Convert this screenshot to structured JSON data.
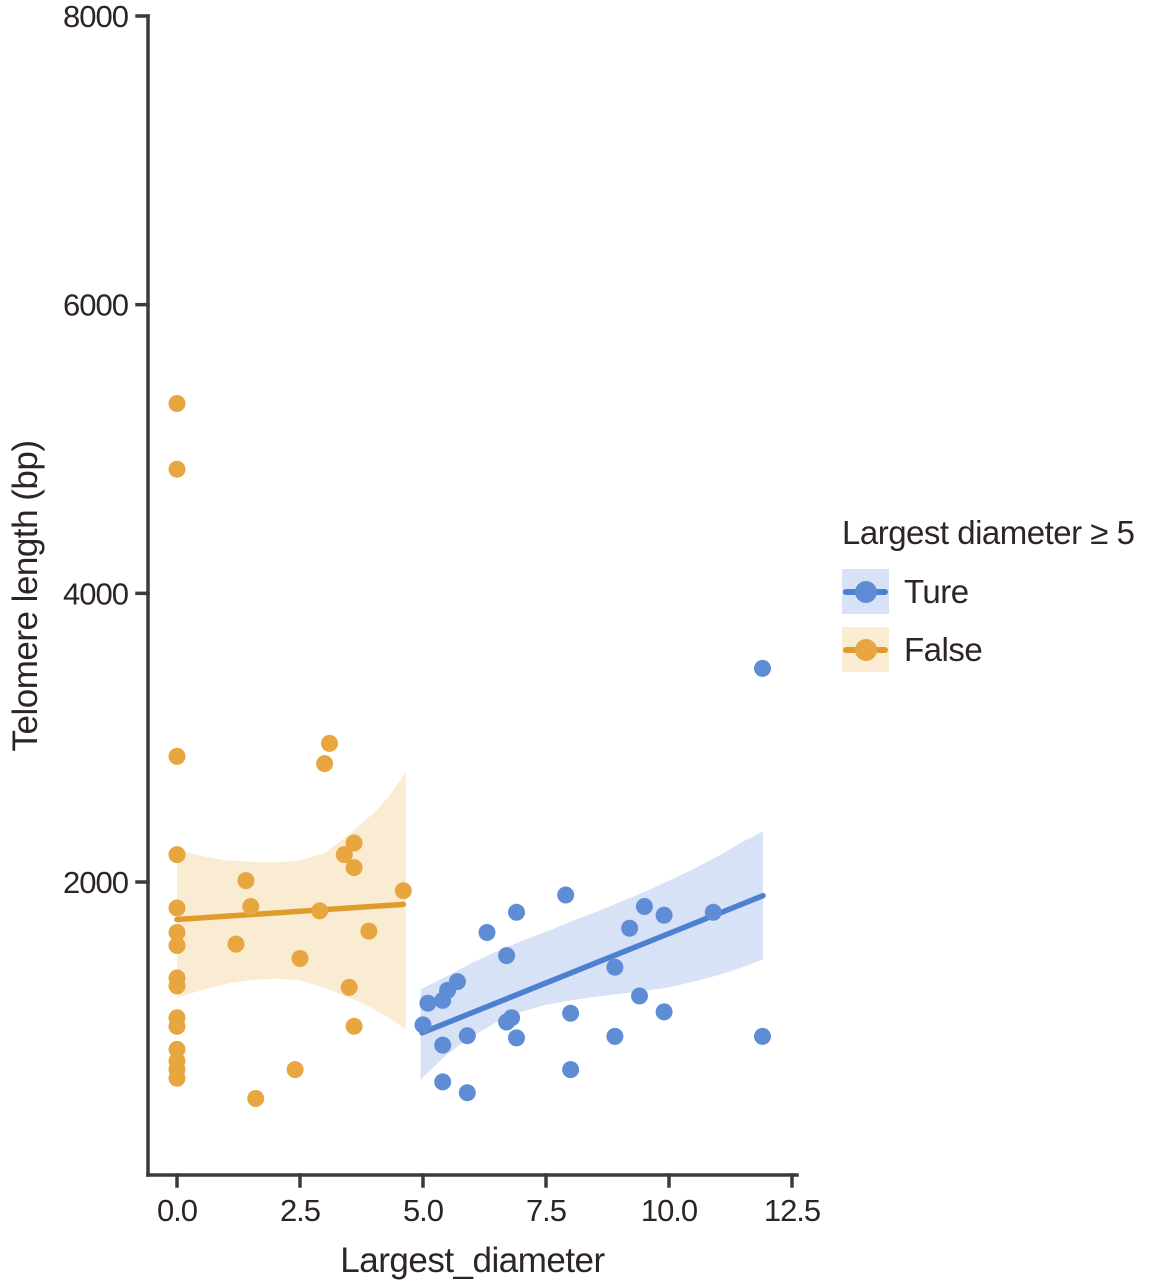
{
  "chart_data": {
    "type": "scatter",
    "title": "",
    "xlabel": "Largest_diameter",
    "ylabel": "Telomere length (bp)",
    "xlim": [
      0,
      12.5
    ],
    "ylim": [
      0,
      8000
    ],
    "grid": false,
    "x_ticks": [
      0.0,
      2.5,
      5.0,
      7.5,
      10.0,
      12.5
    ],
    "x_tick_labels": [
      "0.0",
      "2.5",
      "5.0",
      "7.5",
      "10.0",
      "12.5"
    ],
    "y_ticks": [
      2000,
      4000,
      6000,
      8000
    ],
    "y_tick_labels": [
      "2000",
      "4000",
      "6000",
      "8000"
    ],
    "axis_color": "#3e3a39",
    "text_color": "#2c2523",
    "legend": {
      "title": "Largest diameter ≥ 5",
      "position": "right",
      "items": [
        {
          "label": "Ture",
          "series": "Ture"
        },
        {
          "label": "False",
          "series": "False"
        }
      ]
    },
    "series": [
      {
        "name": "Ture",
        "point_color": "#5e8cd5",
        "line_color": "#4d80d0",
        "band_color": "#d8e2f6",
        "points": [
          [
            5.0,
            1010
          ],
          [
            5.1,
            1160
          ],
          [
            5.4,
            1180
          ],
          [
            5.5,
            1250
          ],
          [
            5.7,
            1310
          ],
          [
            5.4,
            870
          ],
          [
            5.9,
            935
          ],
          [
            5.4,
            615
          ],
          [
            5.9,
            540
          ],
          [
            6.3,
            1650
          ],
          [
            6.7,
            1490
          ],
          [
            6.7,
            1030
          ],
          [
            6.8,
            1060
          ],
          [
            6.9,
            920
          ],
          [
            6.9,
            1790
          ],
          [
            7.9,
            1910
          ],
          [
            8.0,
            1090
          ],
          [
            8.0,
            700
          ],
          [
            8.9,
            1410
          ],
          [
            8.9,
            930
          ],
          [
            9.2,
            1680
          ],
          [
            9.4,
            1210
          ],
          [
            9.5,
            1830
          ],
          [
            9.9,
            1770
          ],
          [
            9.9,
            1100
          ],
          [
            10.9,
            1790
          ],
          [
            11.9,
            3480
          ],
          [
            11.9,
            930
          ]
        ],
        "regression": {
          "x": [
            4.98,
            11.91
          ],
          "y": [
            955,
            1905
          ]
        },
        "band": [
          {
            "x": 4.95,
            "lo": 630,
            "hi": 1255
          },
          {
            "x": 5.5,
            "lo": 810,
            "hi": 1350
          },
          {
            "x": 6.0,
            "lo": 930,
            "hi": 1440
          },
          {
            "x": 6.5,
            "lo": 1030,
            "hi": 1520
          },
          {
            "x": 7.0,
            "lo": 1100,
            "hi": 1590
          },
          {
            "x": 7.5,
            "lo": 1150,
            "hi": 1655
          },
          {
            "x": 8.0,
            "lo": 1180,
            "hi": 1725
          },
          {
            "x": 8.5,
            "lo": 1205,
            "hi": 1790
          },
          {
            "x": 9.0,
            "lo": 1225,
            "hi": 1860
          },
          {
            "x": 9.5,
            "lo": 1245,
            "hi": 1930
          },
          {
            "x": 10.0,
            "lo": 1270,
            "hi": 2010
          },
          {
            "x": 10.5,
            "lo": 1310,
            "hi": 2090
          },
          {
            "x": 11.0,
            "lo": 1355,
            "hi": 2180
          },
          {
            "x": 11.5,
            "lo": 1410,
            "hi": 2280
          },
          {
            "x": 11.91,
            "lo": 1465,
            "hi": 2350
          }
        ]
      },
      {
        "name": "False",
        "point_color": "#e7a63f",
        "line_color": "#df9c2d",
        "band_color": "#f9ecd2",
        "points": [
          [
            0,
            5315
          ],
          [
            0,
            4860
          ],
          [
            0,
            2870
          ],
          [
            0,
            2190
          ],
          [
            0,
            1820
          ],
          [
            0,
            1650
          ],
          [
            0,
            1560
          ],
          [
            0,
            1335
          ],
          [
            0,
            1280
          ],
          [
            0,
            1060
          ],
          [
            0,
            1000
          ],
          [
            0,
            840
          ],
          [
            0,
            760
          ],
          [
            0,
            700
          ],
          [
            0,
            640
          ],
          [
            1.2,
            1570
          ],
          [
            1.4,
            2010
          ],
          [
            1.5,
            1830
          ],
          [
            1.6,
            500
          ],
          [
            2.4,
            700
          ],
          [
            2.5,
            1470
          ],
          [
            2.9,
            1800
          ],
          [
            3.0,
            2820
          ],
          [
            3.1,
            2960
          ],
          [
            3.4,
            2190
          ],
          [
            3.5,
            1270
          ],
          [
            3.6,
            2270
          ],
          [
            3.6,
            2100
          ],
          [
            3.6,
            1000
          ],
          [
            3.9,
            1660
          ],
          [
            4.6,
            1940
          ]
        ],
        "regression": {
          "x": [
            0,
            4.6
          ],
          "y": [
            1740,
            1845
          ]
        },
        "band": [
          {
            "x": 0,
            "lo": 1200,
            "hi": 2220
          },
          {
            "x": 0.5,
            "lo": 1250,
            "hi": 2180
          },
          {
            "x": 1.0,
            "lo": 1295,
            "hi": 2150
          },
          {
            "x": 1.5,
            "lo": 1320,
            "hi": 2140
          },
          {
            "x": 2.0,
            "lo": 1330,
            "hi": 2135
          },
          {
            "x": 2.5,
            "lo": 1320,
            "hi": 2150
          },
          {
            "x": 3.0,
            "lo": 1265,
            "hi": 2200
          },
          {
            "x": 3.5,
            "lo": 1200,
            "hi": 2330
          },
          {
            "x": 4.0,
            "lo": 1120,
            "hi": 2480
          },
          {
            "x": 4.3,
            "lo": 1060,
            "hi": 2590
          },
          {
            "x": 4.65,
            "lo": 980,
            "hi": 2760
          }
        ]
      }
    ]
  }
}
